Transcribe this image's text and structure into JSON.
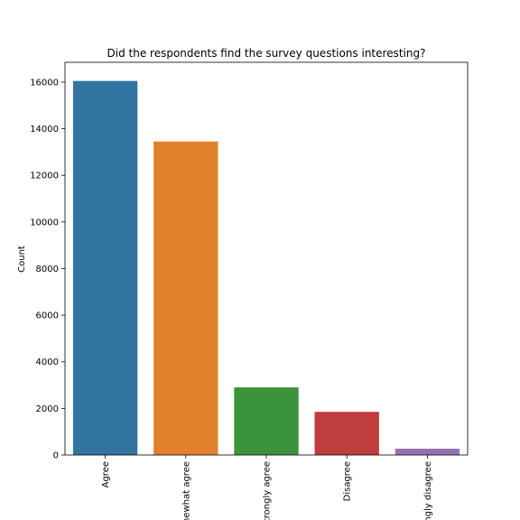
{
  "chart_data": {
    "type": "bar",
    "title": "Did the respondents find the survey questions interesting?",
    "xlabel": "",
    "ylabel": "Count",
    "categories": [
      "Agree",
      "Somewhat agree",
      "Strongly agree",
      "Disagree",
      "Strongly disagree"
    ],
    "values": [
      16050,
      13450,
      2900,
      1850,
      270
    ],
    "colors": [
      "#3274a1",
      "#e1812c",
      "#3a923a",
      "#c03d3e",
      "#9372b2"
    ],
    "yticks": [
      0,
      2000,
      4000,
      6000,
      8000,
      10000,
      12000,
      14000,
      16000
    ],
    "ylim": [
      0,
      16850
    ],
    "grid": false,
    "legend": "none"
  }
}
